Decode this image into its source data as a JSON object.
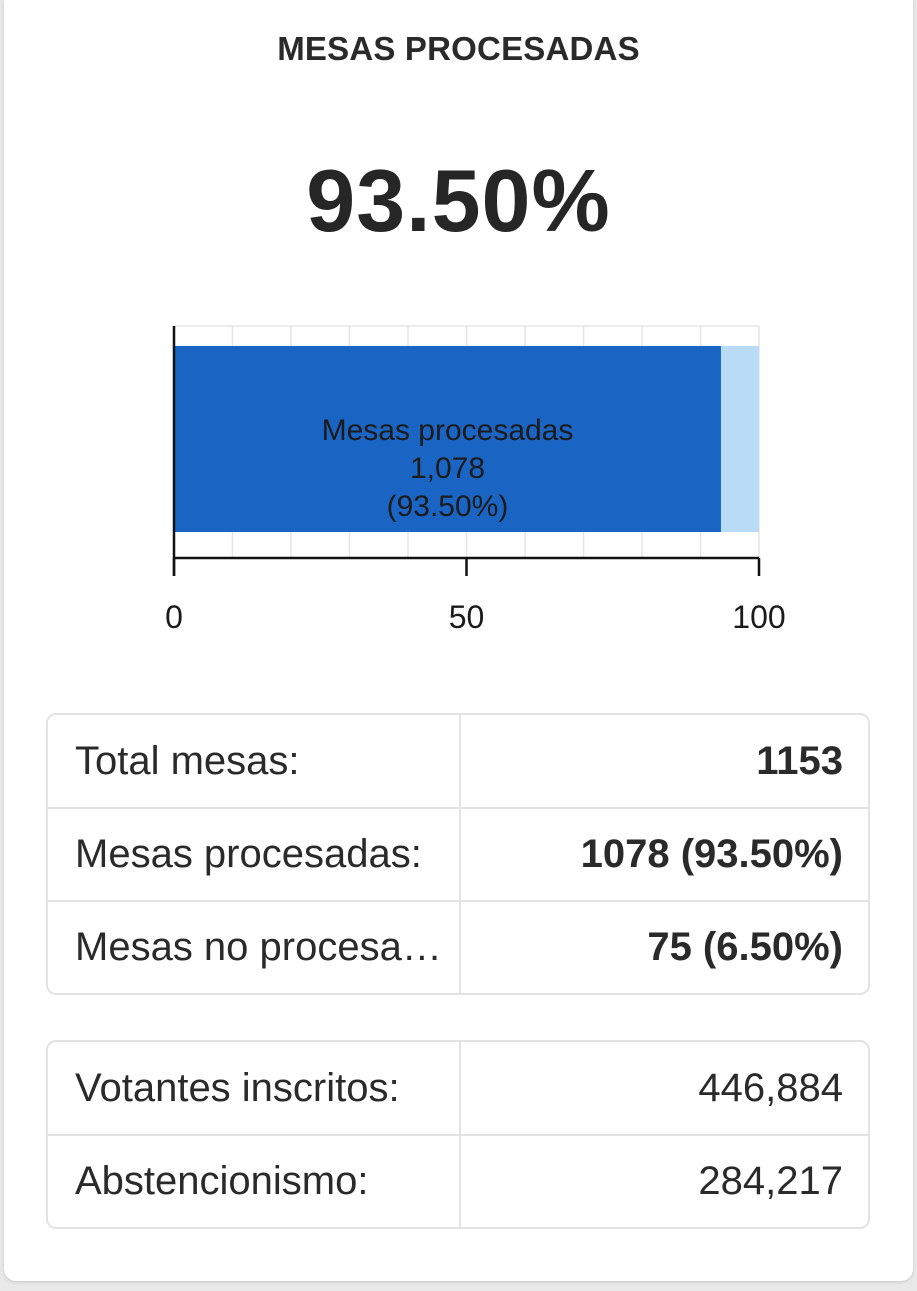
{
  "header": {
    "title": "MESAS PROCESADAS",
    "percentage": "93.50%"
  },
  "chart_data": {
    "type": "bar",
    "orientation": "horizontal",
    "stacked": true,
    "xlim": [
      0,
      100
    ],
    "ticks": [
      "0",
      "50",
      "100"
    ],
    "series": [
      {
        "name": "Mesas procesadas",
        "value": 93.5,
        "count_label": "1,078",
        "pct_label": "(93.50%)",
        "color": "#1a64c4"
      },
      {
        "name": "",
        "value": 6.5,
        "color": "#b9dbf5"
      }
    ],
    "grid": true
  },
  "summary": {
    "rows": [
      {
        "label": "Total mesas:",
        "value": "1153"
      },
      {
        "label": "Mesas procesadas:",
        "value": "1078 (93.50%)"
      },
      {
        "label": "Mesas no procesa…",
        "value": "75 (6.50%)"
      }
    ]
  },
  "voters": {
    "rows": [
      {
        "label": "Votantes inscritos:",
        "value": "446,884"
      },
      {
        "label": "Abstencionismo:",
        "value": "284,217"
      }
    ]
  }
}
